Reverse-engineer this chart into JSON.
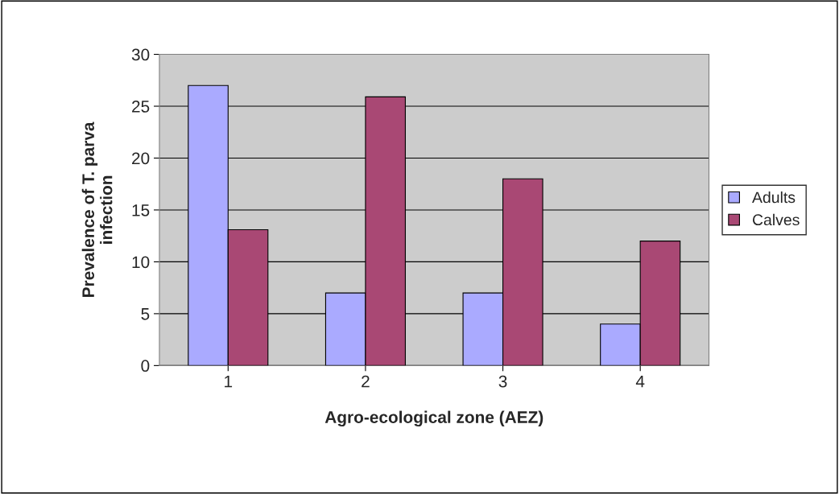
{
  "chart_data": {
    "type": "bar",
    "xlabel": "Agro-ecological zone (AEZ)",
    "ylabel": "Prevalence of T. parva\ninfection",
    "categories": [
      "1",
      "2",
      "3",
      "4"
    ],
    "series": [
      {
        "name": "Adults",
        "color": "#aaaaff",
        "values": [
          27,
          7,
          7,
          4
        ]
      },
      {
        "name": "Calves",
        "color": "#a94874",
        "values": [
          13.1,
          25.9,
          18,
          12
        ]
      }
    ],
    "ylim": [
      0,
      30
    ],
    "yticks": [
      0,
      5,
      10,
      15,
      20,
      25,
      30
    ],
    "grid": "y",
    "legend": "right"
  }
}
